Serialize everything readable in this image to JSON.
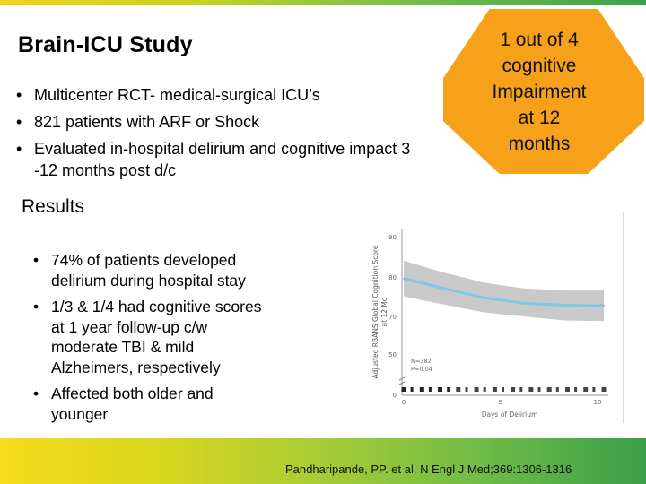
{
  "slide": {
    "title": "Brain-ICU Study",
    "top_bullets": [
      "Multicenter RCT- medical-surgical ICU’s",
      "821 patients with ARF or Shock",
      "Evaluated in-hospital delirium and cognitive impact 3",
      "-12 months post d/c"
    ],
    "callout_lines": [
      "1 out of 4",
      "cognitive",
      "Impairment",
      "at 12",
      "months"
    ],
    "results_label": "Results",
    "result_bullets": [
      [
        "74% of patients developed",
        "delirium during hospital stay"
      ],
      [
        "1/3 & 1/4 had cognitive scores",
        "at 1 year follow-up c/w",
        "moderate TBI & mild",
        "Alzheimers, respectively"
      ],
      [
        "Affected both older and",
        "younger"
      ]
    ],
    "citation": "Pandharipande, PP. et al. N Engl J Med;369:1306-1316"
  },
  "chart_data": {
    "type": "line",
    "xlabel": "Days of Delirium",
    "ylabel_lines": [
      "Adjusted RBANS Global Cognition Score",
      "at 12 Mo"
    ],
    "y_ticks": [
      "90",
      "80",
      "70",
      "50",
      "0"
    ],
    "x_ticks": [
      "0",
      "5",
      "10"
    ],
    "annotation_lines": [
      "N=382",
      "P=0.04"
    ],
    "x": [
      0,
      2,
      4,
      6,
      8,
      10
    ],
    "y": [
      79.5,
      77,
      74.7,
      73.3,
      72.8,
      72.7
    ],
    "ci_upper": [
      84,
      81,
      78.5,
      77,
      76.5,
      76.5
    ],
    "ci_lower": [
      75,
      73,
      71,
      70,
      69,
      68.8
    ],
    "xlim": [
      0,
      10
    ]
  }
}
